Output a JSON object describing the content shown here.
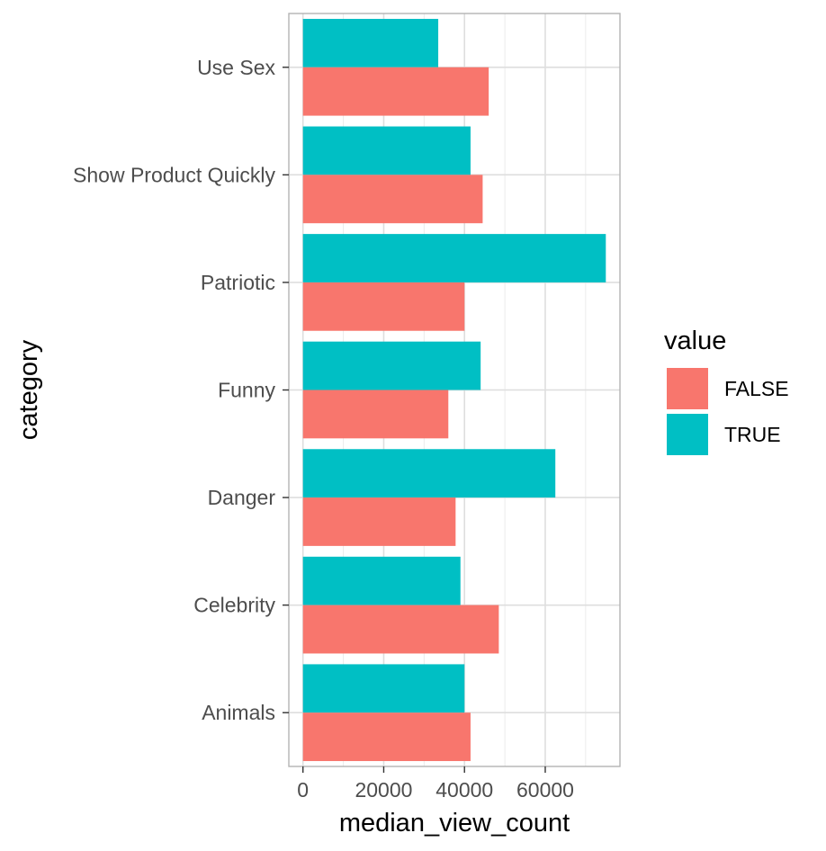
{
  "chart_data": {
    "type": "bar",
    "orientation": "horizontal",
    "categories": [
      "Animals",
      "Celebrity",
      "Danger",
      "Funny",
      "Patriotic",
      "Show Product Quickly",
      "Use Sex"
    ],
    "series": [
      {
        "name": "FALSE",
        "color": "#f8766d",
        "values": [
          41500,
          48500,
          37800,
          36000,
          40000,
          44500,
          46000
        ]
      },
      {
        "name": "TRUE",
        "color": "#00bfc4",
        "values": [
          40000,
          39000,
          62500,
          44000,
          75000,
          41500,
          33500
        ]
      }
    ],
    "xlabel": "median_view_count",
    "ylabel": "category",
    "x_ticks": [
      0,
      20000,
      40000,
      60000
    ],
    "x_tick_labels": [
      "0",
      "20000",
      "40000",
      "60000"
    ],
    "xlim": [
      -3500,
      78500
    ],
    "legend_title": "value",
    "legend_position": "right",
    "grid": true,
    "theme": "light"
  }
}
